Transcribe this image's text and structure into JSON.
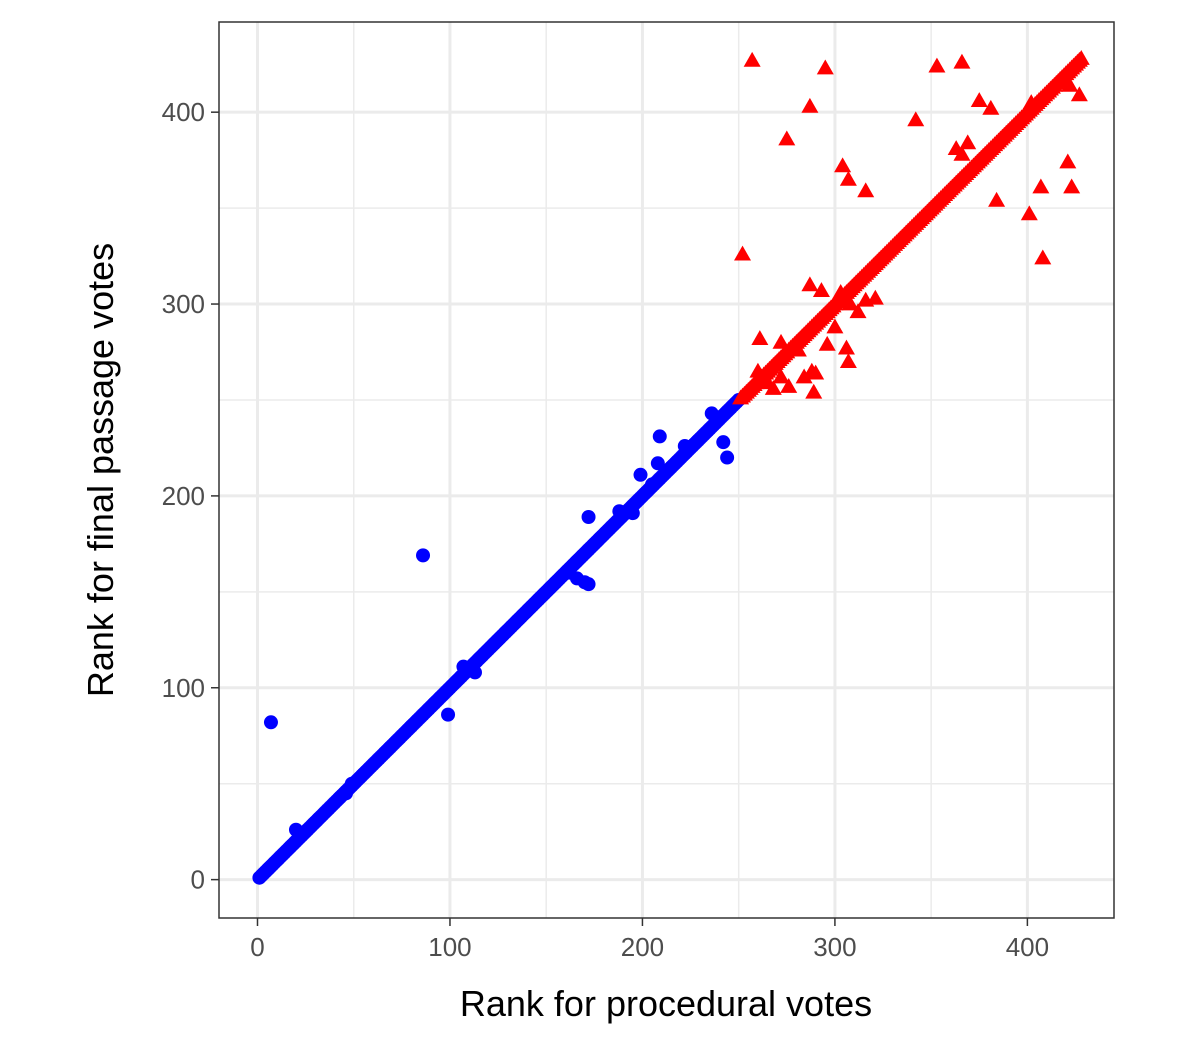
{
  "chart_data": {
    "type": "scatter",
    "title": "",
    "xlabel": "Rank for procedural votes",
    "ylabel": "Rank for final passage votes",
    "xlim": [
      -20,
      445
    ],
    "ylim": [
      -20,
      447
    ],
    "x_ticks": [
      0,
      100,
      200,
      300,
      400
    ],
    "y_ticks": [
      0,
      100,
      200,
      300,
      400
    ],
    "grid": true,
    "legend": "none",
    "series": [
      {
        "marker": "circle",
        "color": "#0000FF",
        "diagonal_ranks": [
          1,
          250
        ],
        "points": [
          [
            7,
            82
          ],
          [
            20,
            26
          ],
          [
            46,
            45
          ],
          [
            49,
            50
          ],
          [
            86,
            169
          ],
          [
            99,
            86
          ],
          [
            107,
            111
          ],
          [
            110,
            109
          ],
          [
            113,
            108
          ],
          [
            172,
            189
          ],
          [
            162,
            160
          ],
          [
            166,
            157
          ],
          [
            170,
            155
          ],
          [
            172,
            154
          ],
          [
            188,
            192
          ],
          [
            195,
            191
          ],
          [
            199,
            211
          ],
          [
            205,
            206
          ],
          [
            208,
            217
          ],
          [
            209,
            231
          ],
          [
            222,
            226
          ],
          [
            242,
            228
          ],
          [
            244,
            220
          ],
          [
            236,
            243
          ],
          [
            240,
            241
          ]
        ]
      },
      {
        "marker": "triangle",
        "color": "#FF0000",
        "diagonal_ranks": [
          251,
          428
        ],
        "points": [
          [
            257,
            427
          ],
          [
            295,
            423
          ],
          [
            353,
            424
          ],
          [
            366,
            426
          ],
          [
            287,
            403
          ],
          [
            375,
            406
          ],
          [
            381,
            402
          ],
          [
            342,
            396
          ],
          [
            275,
            386
          ],
          [
            304,
            372
          ],
          [
            307,
            365
          ],
          [
            316,
            359
          ],
          [
            369,
            384
          ],
          [
            366,
            378
          ],
          [
            363,
            381
          ],
          [
            384,
            354
          ],
          [
            401,
            347
          ],
          [
            407,
            361
          ],
          [
            421,
            374
          ],
          [
            423,
            361
          ],
          [
            427,
            409
          ],
          [
            422,
            414
          ],
          [
            402,
            405
          ],
          [
            408,
            324
          ],
          [
            252,
            326
          ],
          [
            287,
            310
          ],
          [
            293,
            307
          ],
          [
            303,
            306
          ],
          [
            308,
            300
          ],
          [
            316,
            302
          ],
          [
            321,
            303
          ],
          [
            300,
            288
          ],
          [
            312,
            296
          ],
          [
            260,
            265
          ],
          [
            265,
            259
          ],
          [
            268,
            256
          ],
          [
            272,
            262
          ],
          [
            276,
            257
          ],
          [
            281,
            276
          ],
          [
            284,
            262
          ],
          [
            288,
            265
          ],
          [
            289,
            254
          ],
          [
            290,
            264
          ],
          [
            306,
            277
          ],
          [
            307,
            270
          ],
          [
            261,
            282
          ],
          [
            272,
            280
          ],
          [
            296,
            279
          ]
        ]
      }
    ]
  }
}
